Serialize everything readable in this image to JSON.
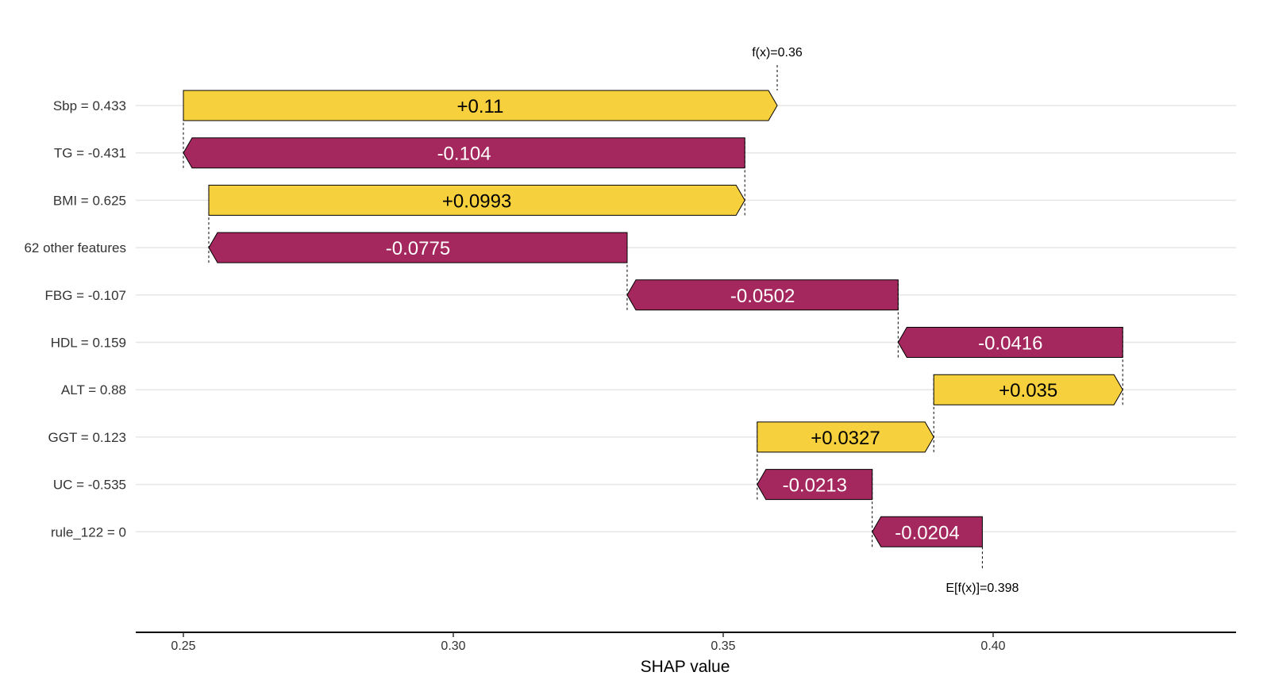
{
  "chart_data": {
    "type": "waterfall",
    "xlabel": "SHAP value",
    "xlim": [
      0.241,
      0.444
    ],
    "xticks": [
      0.25,
      0.3,
      0.35,
      0.4
    ],
    "xtick_labels": [
      "0.25",
      "0.30",
      "0.35",
      "0.40"
    ],
    "base_value": 0.398,
    "base_label": "E[f(x)]=0.398",
    "final_value": 0.36,
    "final_label": "f(x)=0.36",
    "colors": {
      "positive": "#F7D13D",
      "negative": "#A4285D",
      "positive_text": "#000000",
      "negative_text": "#ffffff"
    },
    "features": [
      {
        "label": "Sbp = 0.433",
        "value": 0.11,
        "value_label": "+0.11"
      },
      {
        "label": "TG = -0.431",
        "value": -0.104,
        "value_label": "-0.104"
      },
      {
        "label": "BMI = 0.625",
        "value": 0.0993,
        "value_label": "+0.0993"
      },
      {
        "label": "62 other features",
        "value": -0.0775,
        "value_label": "-0.0775"
      },
      {
        "label": "FBG = -0.107",
        "value": -0.0502,
        "value_label": "-0.0502"
      },
      {
        "label": "HDL = 0.159",
        "value": -0.0416,
        "value_label": "-0.0416"
      },
      {
        "label": "ALT = 0.88",
        "value": 0.035,
        "value_label": "+0.035"
      },
      {
        "label": "GGT = 0.123",
        "value": 0.0327,
        "value_label": "+0.0327"
      },
      {
        "label": "UC = -0.535",
        "value": -0.0213,
        "value_label": "-0.0213"
      },
      {
        "label": "rule_122 = 0",
        "value": -0.0204,
        "value_label": "-0.0204"
      }
    ]
  }
}
